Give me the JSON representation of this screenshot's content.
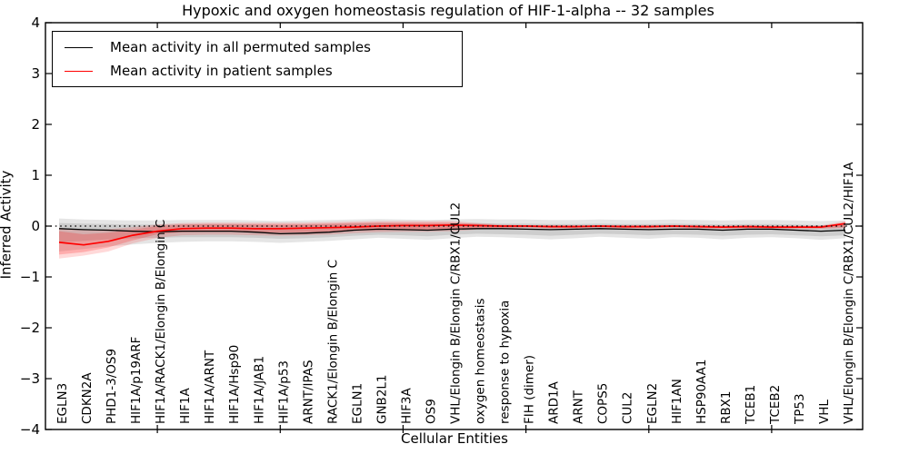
{
  "title": "Hypoxic and oxygen homeostasis regulation of HIF-1-alpha -- 32 samples",
  "legend": {
    "items": [
      {
        "label": "Mean activity in all permuted samples",
        "color": "#000000"
      },
      {
        "label": "Mean activity in patient samples",
        "color": "#ff0000"
      }
    ]
  },
  "axes": {
    "ylabel": "Inferred Activity",
    "xlabel": "Cellular Entities",
    "yticks": [
      4,
      3,
      2,
      1,
      0,
      -1,
      -2,
      -3,
      -4
    ]
  },
  "chart_data": {
    "type": "line",
    "title": "Hypoxic and oxygen homeostasis regulation of HIF-1-alpha -- 32 samples",
    "xlabel": "Cellular Entities",
    "ylabel": "Inferred Activity",
    "ylim": [
      -4,
      4
    ],
    "yticks": [
      4,
      3,
      2,
      1,
      0,
      -1,
      -2,
      -3,
      -4
    ],
    "xtick_indices": [
      4,
      9,
      14,
      19,
      24,
      29
    ],
    "grid": false,
    "legend_position": "upper left",
    "baseline": {
      "y": 0,
      "style": "dotted",
      "color": "#000000"
    },
    "categories": [
      "EGLN3",
      "CDKN2A",
      "PHD1-3/OS9",
      "HIF1A/p19ARF",
      "HIF1A/RACK1/Elongin B/Elongin C",
      "HIF1A",
      "HIF1A/ARNT",
      "HIF1A/Hsp90",
      "HIF1A/JAB1",
      "HIF1A/p53",
      "ARNT/IPAS",
      "RACK1/Elongin B/Elongin C",
      "EGLN1",
      "GNB2L1",
      "HIF3A",
      "OS9",
      "VHL/Elongin B/Elongin C/RBX1/CUL2",
      "oxygen homeostasis",
      "response to hypoxia",
      "FIH (dimer)",
      "ARD1A",
      "ARNT",
      "COPS5",
      "CUL2",
      "EGLN2",
      "HIF1AN",
      "HSP90AA1",
      "RBX1",
      "TCEB1",
      "TCEB2",
      "TP53",
      "VHL",
      "VHL/Elongin B/Elongin C/RBX1/CUL2/HIF1A"
    ],
    "series": [
      {
        "name": "Mean activity in all permuted samples",
        "color": "#000000",
        "width": 1.3,
        "values": [
          -0.05,
          -0.07,
          -0.08,
          -0.1,
          -0.11,
          -0.1,
          -0.1,
          -0.1,
          -0.12,
          -0.15,
          -0.14,
          -0.12,
          -0.08,
          -0.06,
          -0.07,
          -0.08,
          -0.06,
          -0.05,
          -0.05,
          -0.06,
          -0.07,
          -0.06,
          -0.05,
          -0.06,
          -0.07,
          -0.06,
          -0.06,
          -0.08,
          -0.06,
          -0.06,
          -0.08,
          -0.1,
          -0.08
        ]
      },
      {
        "name": "Mean activity in patient samples",
        "color": "#ff0000",
        "width": 1.7,
        "values": [
          -0.32,
          -0.37,
          -0.3,
          -0.18,
          -0.1,
          -0.05,
          -0.04,
          -0.04,
          -0.05,
          -0.05,
          -0.04,
          -0.03,
          -0.02,
          0.0,
          0.01,
          0.01,
          0.02,
          0.01,
          0.0,
          0.0,
          -0.01,
          -0.01,
          0.0,
          -0.01,
          -0.01,
          0.0,
          -0.01,
          -0.02,
          -0.01,
          -0.02,
          -0.02,
          -0.02,
          0.05
        ]
      }
    ],
    "bands": [
      {
        "name": "permuted-band-outer",
        "color": "#000000",
        "opacity": 0.1,
        "upper": [
          0.15,
          0.13,
          0.12,
          0.11,
          0.11,
          0.12,
          0.12,
          0.12,
          0.11,
          0.1,
          0.11,
          0.12,
          0.13,
          0.14,
          0.13,
          0.12,
          0.13,
          0.14,
          0.13,
          0.13,
          0.12,
          0.12,
          0.13,
          0.12,
          0.12,
          0.13,
          0.12,
          0.11,
          0.12,
          0.12,
          0.11,
          0.1,
          0.11
        ],
        "lower": [
          -0.5,
          -0.45,
          -0.4,
          -0.36,
          -0.33,
          -0.31,
          -0.3,
          -0.3,
          -0.31,
          -0.33,
          -0.31,
          -0.29,
          -0.26,
          -0.23,
          -0.25,
          -0.27,
          -0.24,
          -0.21,
          -0.22,
          -0.24,
          -0.26,
          -0.24,
          -0.21,
          -0.23,
          -0.25,
          -0.22,
          -0.23,
          -0.26,
          -0.23,
          -0.22,
          -0.24,
          -0.27,
          -0.24
        ]
      },
      {
        "name": "permuted-band-inner",
        "color": "#000000",
        "opacity": 0.1,
        "upper": [
          0.06,
          0.05,
          0.04,
          0.03,
          0.03,
          0.04,
          0.04,
          0.04,
          0.03,
          0.02,
          0.03,
          0.04,
          0.05,
          0.06,
          0.05,
          0.04,
          0.05,
          0.06,
          0.05,
          0.05,
          0.04,
          0.04,
          0.05,
          0.04,
          0.04,
          0.05,
          0.04,
          0.03,
          0.04,
          0.04,
          0.03,
          0.02,
          0.03
        ],
        "lower": [
          -0.32,
          -0.29,
          -0.26,
          -0.24,
          -0.23,
          -0.22,
          -0.22,
          -0.22,
          -0.23,
          -0.25,
          -0.24,
          -0.22,
          -0.19,
          -0.17,
          -0.18,
          -0.2,
          -0.17,
          -0.15,
          -0.16,
          -0.17,
          -0.19,
          -0.17,
          -0.15,
          -0.16,
          -0.18,
          -0.16,
          -0.17,
          -0.19,
          -0.17,
          -0.16,
          -0.18,
          -0.2,
          -0.18
        ]
      },
      {
        "name": "patient-band-outer",
        "color": "#ff0000",
        "opacity": 0.15,
        "upper": [
          -0.03,
          -0.08,
          -0.06,
          -0.02,
          0.03,
          0.06,
          0.07,
          0.07,
          0.07,
          0.07,
          0.07,
          0.08,
          0.09,
          0.1,
          0.1,
          0.1,
          0.1,
          0.06,
          0.03,
          0.02,
          0.02,
          0.02,
          0.02,
          0.02,
          0.02,
          0.02,
          0.02,
          0.01,
          0.02,
          0.01,
          0.01,
          0.01,
          0.1
        ],
        "lower": [
          -0.64,
          -0.58,
          -0.5,
          -0.34,
          -0.23,
          -0.18,
          -0.17,
          -0.17,
          -0.18,
          -0.19,
          -0.18,
          -0.17,
          -0.14,
          -0.12,
          -0.11,
          -0.11,
          -0.1,
          -0.07,
          -0.05,
          -0.04,
          -0.05,
          -0.05,
          -0.04,
          -0.05,
          -0.05,
          -0.04,
          -0.05,
          -0.06,
          -0.05,
          -0.06,
          -0.06,
          -0.06,
          -0.04
        ]
      },
      {
        "name": "patient-band-inner",
        "color": "#ff0000",
        "opacity": 0.2,
        "upper": [
          -0.1,
          -0.16,
          -0.13,
          -0.07,
          0.0,
          0.03,
          0.04,
          0.04,
          0.04,
          0.04,
          0.04,
          0.05,
          0.06,
          0.07,
          0.07,
          0.07,
          0.07,
          0.04,
          0.01,
          0.01,
          0.01,
          0.01,
          0.01,
          0.01,
          0.01,
          0.01,
          0.01,
          0.0,
          0.01,
          0.0,
          0.0,
          0.0,
          0.07
        ],
        "lower": [
          -0.56,
          -0.51,
          -0.42,
          -0.28,
          -0.16,
          -0.12,
          -0.11,
          -0.11,
          -0.12,
          -0.13,
          -0.12,
          -0.11,
          -0.09,
          -0.08,
          -0.07,
          -0.07,
          -0.06,
          -0.04,
          -0.03,
          -0.02,
          -0.03,
          -0.03,
          -0.02,
          -0.03,
          -0.03,
          -0.02,
          -0.03,
          -0.04,
          -0.03,
          -0.04,
          -0.04,
          -0.04,
          -0.02
        ]
      }
    ]
  }
}
